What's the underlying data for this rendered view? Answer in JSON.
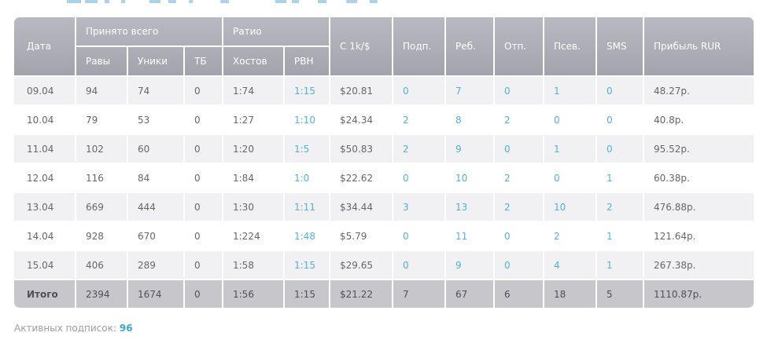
{
  "colors": {
    "link_blue": "#54b1da",
    "header_gradient_top": "#b9b9c1",
    "header_gradient_bottom": "#a3a3ab",
    "stripe_row": "#f1f1f4",
    "total_row": "#c7c7cb"
  },
  "table": {
    "header": {
      "date": "Дата",
      "accepted_group": "Принято всего",
      "ratio_group": "Ратио",
      "raws": "Равы",
      "uniques": "Уники",
      "tb": "ТБ",
      "hosts": "Хостов",
      "rvn": "РВН",
      "c1k": "С 1k/$",
      "subs": "Подп.",
      "rebills": "Реб.",
      "unsubs": "Отп.",
      "psev": "Псев.",
      "sms": "SMS",
      "profit": "Прибыль RUR"
    },
    "rows": [
      {
        "date": "09.04",
        "raws": "94",
        "uniques": "74",
        "tb": "0",
        "hosts": "1:74",
        "rvn": "1:15",
        "c1k": "$20.81",
        "subs": "0",
        "rebills": "7",
        "unsubs": "0",
        "psev": "1",
        "sms": "0",
        "profit": "48.27р."
      },
      {
        "date": "10.04",
        "raws": "79",
        "uniques": "53",
        "tb": "0",
        "hosts": "1:27",
        "rvn": "1:10",
        "c1k": "$24.34",
        "subs": "2",
        "rebills": "8",
        "unsubs": "2",
        "psev": "0",
        "sms": "0",
        "profit": "40.8р."
      },
      {
        "date": "11.04",
        "raws": "102",
        "uniques": "60",
        "tb": "0",
        "hosts": "1:20",
        "rvn": "1:5",
        "c1k": "$50.83",
        "subs": "2",
        "rebills": "9",
        "unsubs": "0",
        "psev": "1",
        "sms": "0",
        "profit": "95.52р."
      },
      {
        "date": "12.04",
        "raws": "116",
        "uniques": "84",
        "tb": "0",
        "hosts": "1:84",
        "rvn": "1:0",
        "c1k": "$22.62",
        "subs": "0",
        "rebills": "10",
        "unsubs": "2",
        "psev": "0",
        "sms": "1",
        "profit": "60.38р."
      },
      {
        "date": "13.04",
        "raws": "669",
        "uniques": "444",
        "tb": "0",
        "hosts": "1:30",
        "rvn": "1:11",
        "c1k": "$34.44",
        "subs": "3",
        "rebills": "13",
        "unsubs": "2",
        "psev": "10",
        "sms": "2",
        "profit": "476.88р."
      },
      {
        "date": "14.04",
        "raws": "928",
        "uniques": "670",
        "tb": "0",
        "hosts": "1:224",
        "rvn": "1:48",
        "c1k": "$5.79",
        "subs": "0",
        "rebills": "11",
        "unsubs": "0",
        "psev": "2",
        "sms": "1",
        "profit": "121.64р."
      },
      {
        "date": "15.04",
        "raws": "406",
        "uniques": "289",
        "tb": "0",
        "hosts": "1:58",
        "rvn": "1:15",
        "c1k": "$29.65",
        "subs": "0",
        "rebills": "9",
        "unsubs": "0",
        "psev": "4",
        "sms": "1",
        "profit": "267.38р."
      }
    ],
    "total": {
      "date": "Итого",
      "raws": "2394",
      "uniques": "1674",
      "tb": "0",
      "hosts": "1:56",
      "rvn": "1:15",
      "c1k": "$21.22",
      "subs": "7",
      "rebills": "67",
      "unsubs": "6",
      "psev": "18",
      "sms": "5",
      "profit": "1110.87р."
    }
  },
  "footer": {
    "active_subs_label": "Активных подписок:",
    "active_subs_value": "96"
  }
}
